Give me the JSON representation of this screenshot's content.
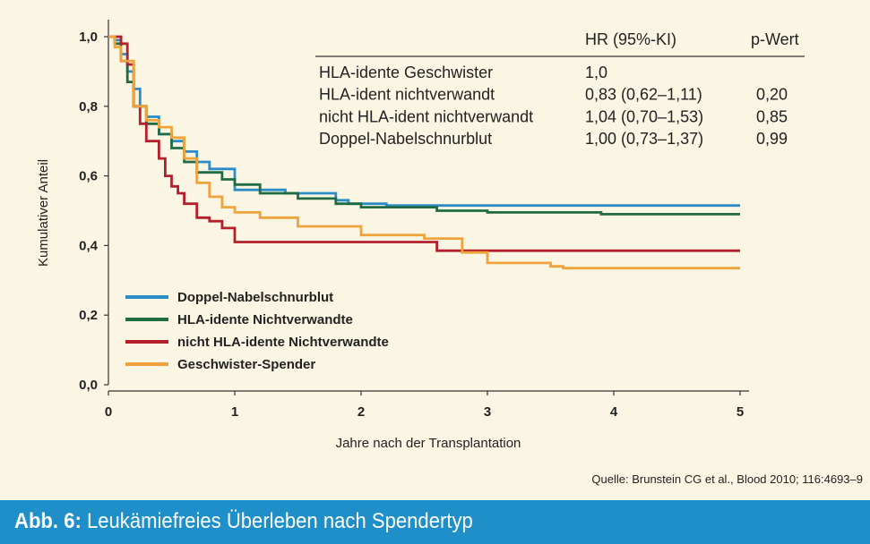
{
  "chart_data": {
    "type": "line",
    "step": true,
    "xlabel": "Jahre nach der Transplantation",
    "ylabel": "Kumulativer Anteil",
    "xlim": [
      0,
      5
    ],
    "ylim": [
      0,
      1
    ],
    "xticks": [
      "0",
      "1",
      "2",
      "3",
      "4",
      "5"
    ],
    "yticks": [
      "0,0",
      "0,2",
      "0,4",
      "0,6",
      "0,8",
      "1,0"
    ],
    "legend_position": "bottom-left",
    "grid": false,
    "series": [
      {
        "name": "Doppel-Nabelschnurblut",
        "color": "#2b8cc8",
        "x": [
          0,
          0.05,
          0.1,
          0.15,
          0.2,
          0.25,
          0.3,
          0.4,
          0.5,
          0.6,
          0.7,
          0.8,
          1.0,
          1.2,
          1.4,
          1.8,
          1.9,
          2.2,
          3.0,
          5.0
        ],
        "y": [
          1.0,
          0.99,
          0.95,
          0.9,
          0.85,
          0.8,
          0.77,
          0.72,
          0.7,
          0.67,
          0.64,
          0.62,
          0.56,
          0.56,
          0.55,
          0.53,
          0.52,
          0.515,
          0.515,
          0.515
        ]
      },
      {
        "name": "HLA-idente Nichtverwandte",
        "color": "#1e6b44",
        "x": [
          0,
          0.05,
          0.1,
          0.15,
          0.2,
          0.3,
          0.4,
          0.5,
          0.6,
          0.7,
          0.9,
          1.0,
          1.2,
          1.5,
          1.8,
          2.0,
          2.6,
          3.0,
          3.9,
          5.0
        ],
        "y": [
          1.0,
          0.98,
          0.93,
          0.87,
          0.8,
          0.75,
          0.72,
          0.68,
          0.64,
          0.61,
          0.59,
          0.575,
          0.55,
          0.535,
          0.52,
          0.51,
          0.5,
          0.495,
          0.49,
          0.49
        ]
      },
      {
        "name": "nicht HLA-idente Nichtverwandte",
        "color": "#b3202c",
        "x": [
          0,
          0.1,
          0.15,
          0.2,
          0.25,
          0.3,
          0.4,
          0.45,
          0.5,
          0.55,
          0.6,
          0.7,
          0.8,
          0.9,
          1.0,
          2.0,
          2.6,
          3.5,
          5.0
        ],
        "y": [
          1.0,
          0.98,
          0.92,
          0.8,
          0.75,
          0.7,
          0.65,
          0.6,
          0.57,
          0.55,
          0.52,
          0.48,
          0.47,
          0.45,
          0.41,
          0.41,
          0.385,
          0.385,
          0.385
        ]
      },
      {
        "name": "Geschwister-Spender",
        "color": "#f0a33c",
        "x": [
          0,
          0.05,
          0.1,
          0.2,
          0.3,
          0.4,
          0.5,
          0.6,
          0.7,
          0.8,
          0.9,
          1.0,
          1.2,
          1.5,
          2.0,
          2.5,
          2.8,
          3.0,
          3.5,
          3.6,
          4.0,
          5.0
        ],
        "y": [
          1.0,
          0.97,
          0.93,
          0.8,
          0.76,
          0.74,
          0.71,
          0.65,
          0.58,
          0.54,
          0.51,
          0.495,
          0.48,
          0.455,
          0.43,
          0.42,
          0.38,
          0.35,
          0.34,
          0.335,
          0.335,
          0.335
        ]
      }
    ],
    "table": {
      "headers": [
        "",
        "HR (95%-KI)",
        "p-Wert"
      ],
      "rows": [
        [
          "HLA-idente Geschwister",
          "1,0",
          ""
        ],
        [
          "HLA-ident nichtverwandt",
          "0,83 (0,62–1,11)",
          "0,20"
        ],
        [
          "nicht HLA-ident nichtverwandt",
          "1,04 (0,70–1,53)",
          "0,85"
        ],
        [
          "Doppel-Nabelschnurblut",
          "1,00 (0,73–1,37)",
          "0,99"
        ]
      ]
    }
  },
  "source": "Quelle: Brunstein CG et al., Blood 2010; 116:4693–9",
  "caption": {
    "label": "Abb. 6:",
    "text": " Leukämiefreies Überleben nach Spendertyp"
  }
}
